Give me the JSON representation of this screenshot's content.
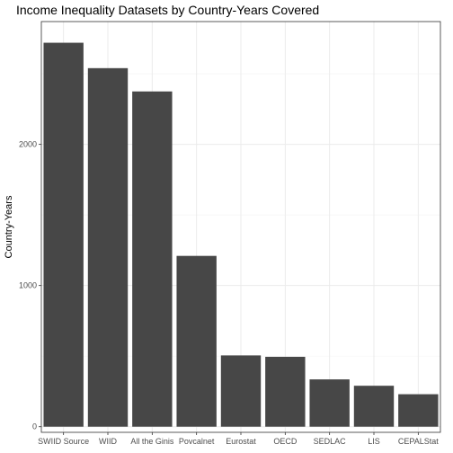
{
  "chart_data": {
    "type": "bar",
    "title": "Income Inequality Datasets by Country-Years Covered",
    "xlabel": "",
    "ylabel": "Country-Years",
    "categories": [
      "SWIID Source",
      "WIID",
      "All the Ginis",
      "Povcalnet",
      "Eurostat",
      "OECD",
      "SEDLAC",
      "LIS",
      "CEPALStat"
    ],
    "values": [
      2720,
      2540,
      2375,
      1210,
      505,
      495,
      335,
      290,
      230
    ],
    "ylim": [
      -40,
      2870
    ],
    "yticks": [
      0,
      1000,
      2000
    ],
    "grid": true,
    "legend": "none",
    "colors": {
      "bar": "#474747",
      "grid_major": "#ebebeb",
      "grid_minor": "#f5f5f5",
      "panel_border": "#333333"
    }
  }
}
